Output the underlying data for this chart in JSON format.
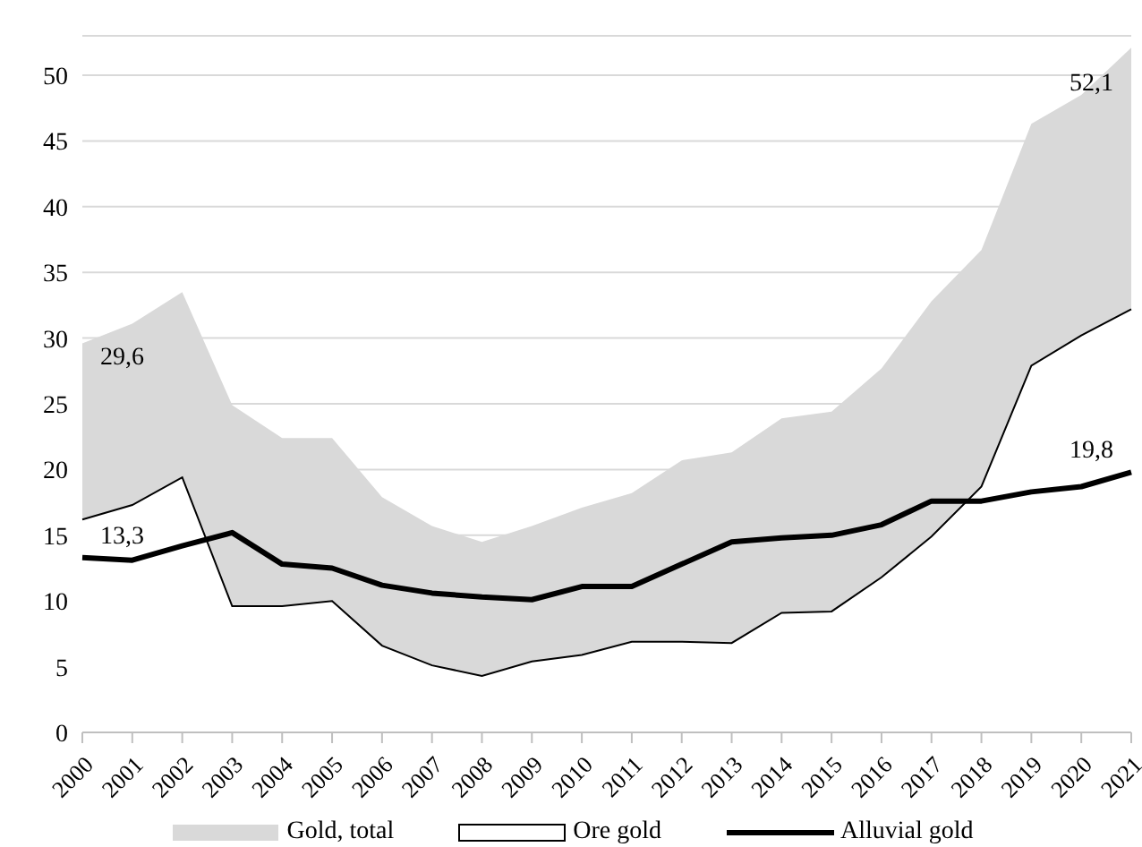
{
  "chart_data": {
    "type": "area",
    "categories": [
      "2000",
      "2001",
      "2002",
      "2003",
      "2004",
      "2005",
      "2006",
      "2007",
      "2008",
      "2009",
      "2010",
      "2011",
      "2012",
      "2013",
      "2014",
      "2015",
      "2016",
      "2017",
      "2018",
      "2019",
      "2020",
      "2021"
    ],
    "series": [
      {
        "name": "Gold, total",
        "color": "#d9d9d9",
        "values": [
          29.6,
          31.1,
          33.5,
          24.9,
          22.4,
          22.4,
          17.9,
          15.7,
          14.5,
          15.7,
          17.1,
          18.2,
          20.7,
          21.3,
          23.9,
          24.4,
          27.7,
          32.8,
          36.7,
          46.3,
          48.5,
          52.1
        ]
      },
      {
        "name": "Ore gold",
        "color": "#ffffff",
        "values": [
          16.2,
          17.3,
          19.4,
          9.6,
          9.6,
          10.0,
          6.6,
          5.1,
          4.3,
          5.4,
          5.9,
          6.9,
          6.9,
          6.8,
          9.1,
          9.2,
          11.8,
          14.9,
          18.7,
          27.9,
          30.2,
          32.2
        ]
      },
      {
        "name": "Alluvial gold",
        "type": "line",
        "color": "#000000",
        "values": [
          13.3,
          13.1,
          14.2,
          15.2,
          12.8,
          12.5,
          11.2,
          10.6,
          10.3,
          10.1,
          11.1,
          11.1,
          12.8,
          14.5,
          14.8,
          15.0,
          15.8,
          17.6,
          17.6,
          18.3,
          18.7,
          19.8
        ]
      }
    ],
    "annotations": [
      {
        "text": "29,6",
        "x": "2000",
        "y": 29.6
      },
      {
        "text": "13,3",
        "x": "2000",
        "y": 13.3
      },
      {
        "text": "52,1",
        "x": "2021",
        "y": 52.1
      },
      {
        "text": "19,8",
        "x": "2021",
        "y": 19.8
      }
    ],
    "ylim": [
      0,
      53
    ],
    "yticks": [
      0,
      5,
      10,
      15,
      20,
      25,
      30,
      35,
      40,
      45,
      50
    ],
    "grid": "y",
    "legend": "bottom",
    "marker": "none",
    "line_style": "solid"
  }
}
